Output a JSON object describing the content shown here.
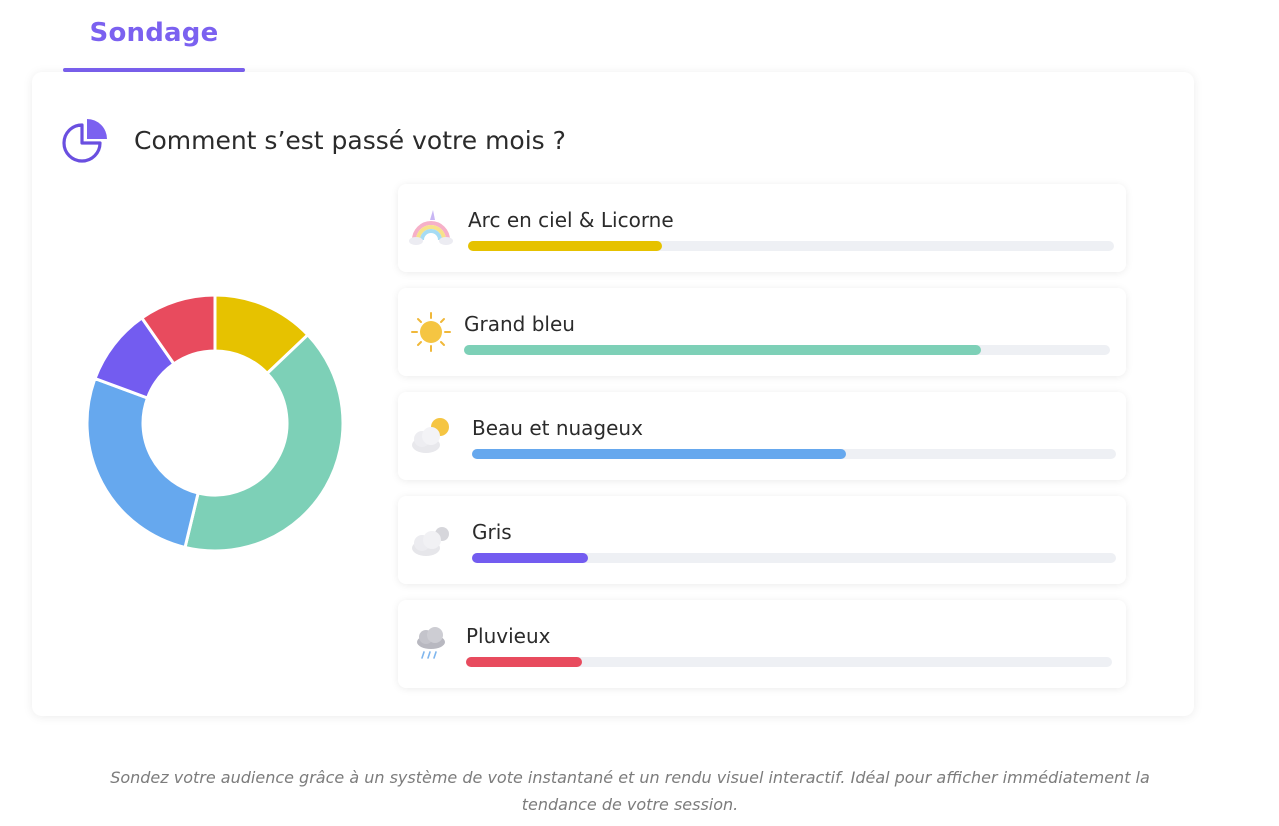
{
  "tab": {
    "label": "Sondage",
    "active": true,
    "color": "#7b61f0"
  },
  "poll": {
    "question": "Comment s’est passé votre mois ?",
    "icon": "pie-chart-icon"
  },
  "chart_data": {
    "type": "pie",
    "categories": [
      "Arc en ciel & Licorne",
      "Grand bleu",
      "Beau et nuageux",
      "Gris",
      "Pluvieux"
    ],
    "values": [
      12,
      38,
      25,
      9,
      9
    ],
    "colors": [
      "#e6c200",
      "#7dd0b7",
      "#66a8ee",
      "#735cf0",
      "#e84b5e"
    ]
  },
  "options": [
    {
      "label": "Arc en ciel & Licorne",
      "icon": "rainbow-unicorn-icon",
      "percent": 30,
      "color": "#e6c200"
    },
    {
      "label": "Grand bleu",
      "icon": "sun-icon",
      "percent": 80,
      "color": "#7dd0b7"
    },
    {
      "label": "Beau et nuageux",
      "icon": "sun-behind-cloud-icon",
      "percent": 58,
      "color": "#66a8ee"
    },
    {
      "label": "Gris",
      "icon": "cloud-icon",
      "percent": 18,
      "color": "#735cf0"
    },
    {
      "label": "Pluvieux",
      "icon": "rain-cloud-icon",
      "percent": 18,
      "color": "#e84b5e"
    }
  ],
  "caption": "Sondez votre audience grâce à un système de vote instantané et un rendu visuel interactif. Idéal pour afficher immédiatement la tendance de votre session."
}
